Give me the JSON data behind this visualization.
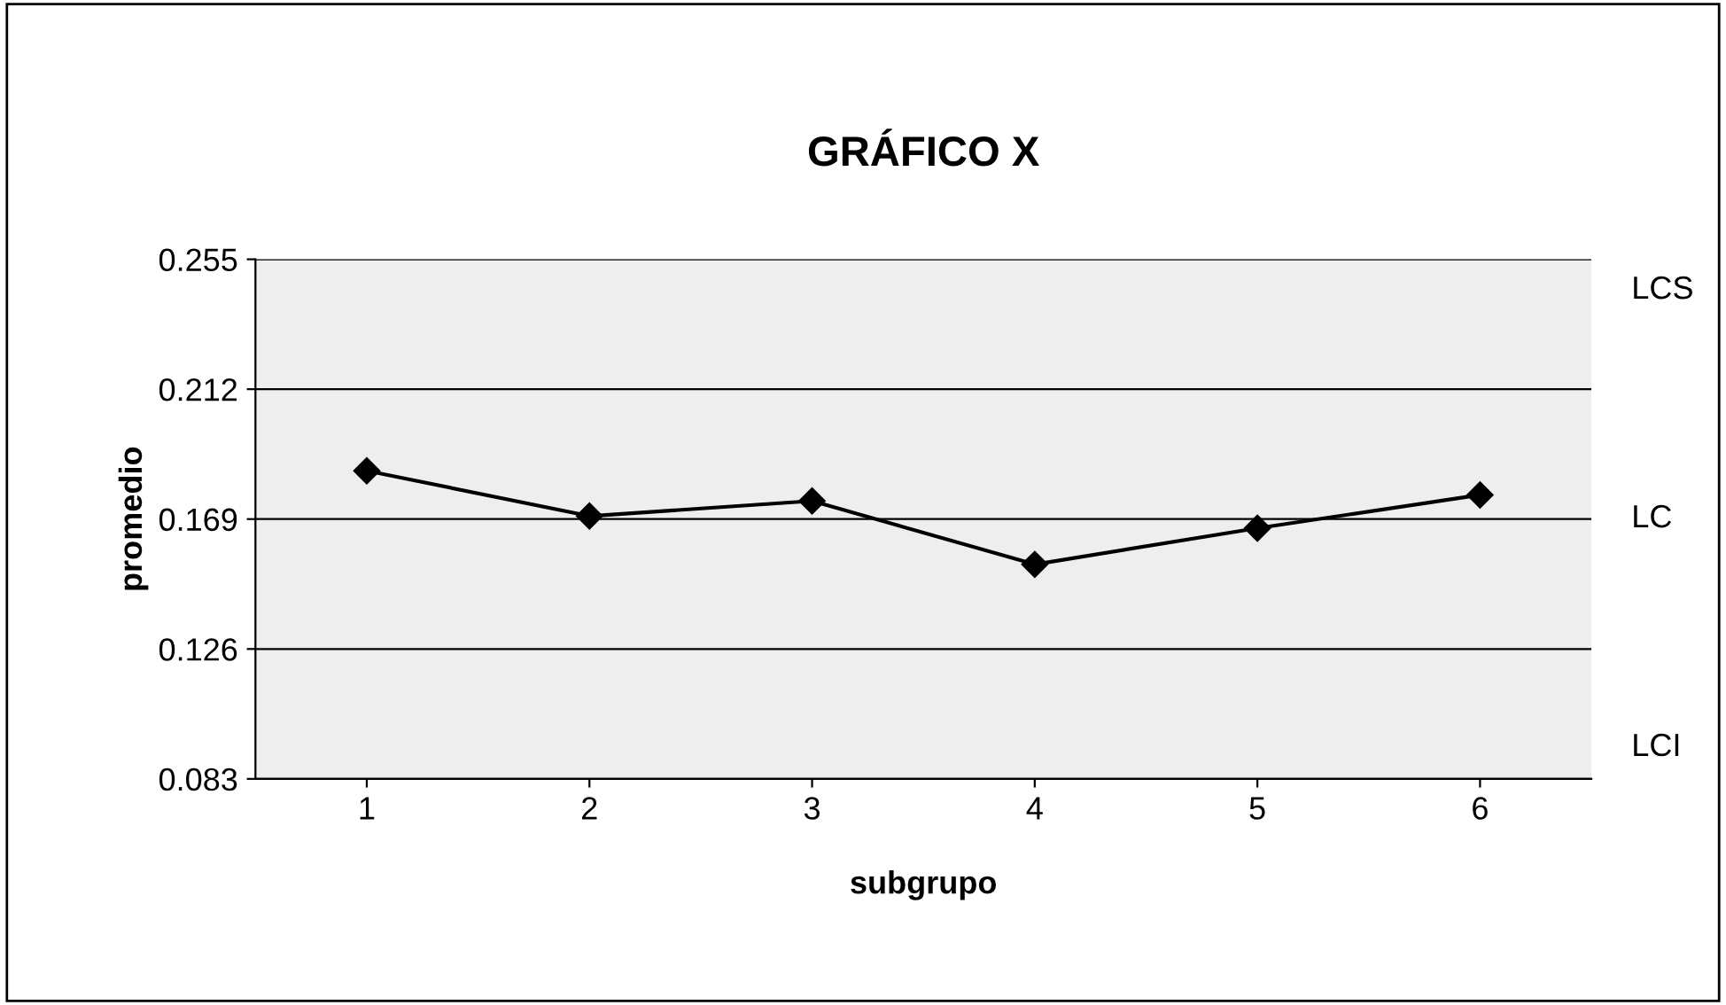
{
  "chart_data": {
    "type": "line",
    "title": "GRÁFICO X",
    "xlabel": "subgrupo",
    "ylabel": "promedio",
    "categories": [
      "1",
      "2",
      "3",
      "4",
      "5",
      "6"
    ],
    "series": [
      {
        "color": "#000000",
        "values": [
          0.185,
          0.17,
          0.175,
          0.154,
          0.166,
          0.177
        ]
      }
    ],
    "ylim": [
      0.083,
      0.255
    ],
    "yticks": [
      0.083,
      0.126,
      0.169,
      0.212,
      0.255
    ],
    "grid": "y",
    "legend": false,
    "marker": "diamond",
    "line_style": "solid",
    "annotations": [
      "LCS",
      "LC",
      "LCI"
    ]
  }
}
